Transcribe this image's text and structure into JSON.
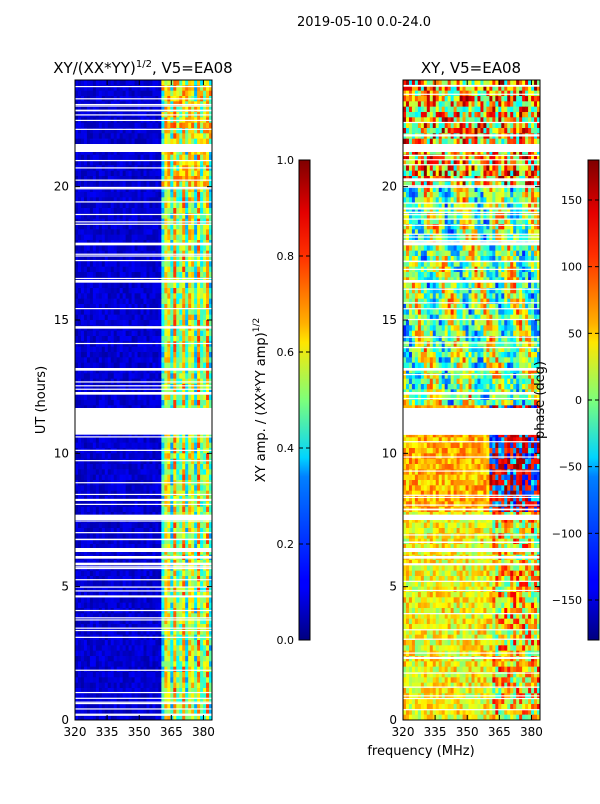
{
  "suptitle": "2019-05-10 0.0-24.0",
  "chart_data": [
    {
      "type": "heatmap",
      "title_prefix": "XY/(XX*YY)",
      "title_sup": "1/2",
      "title_suffix": ", V5=EA08",
      "ylabel": "UT (hours)",
      "xlabel": "",
      "xlim": [
        320,
        384
      ],
      "ylim": [
        0,
        24
      ],
      "xticks": [
        "320",
        "335",
        "350",
        "365",
        "380"
      ],
      "yticks": [
        "0",
        "5",
        "10",
        "15",
        "20"
      ],
      "colormap": "jet",
      "colorbar": {
        "label_prefix": "XY amp. / (XX*YY amp)",
        "label_sup": "1/2",
        "range": [
          0.0,
          1.0
        ],
        "ticks": [
          "0.0",
          "0.2",
          "0.4",
          "0.6",
          "0.8",
          "1.0"
        ]
      },
      "gaps_ut_hours": [
        [
          21.3,
          21.6
        ],
        [
          10.7,
          11.7
        ],
        [
          7.5,
          7.7
        ],
        [
          6.3,
          6.45
        ],
        [
          6.05,
          6.15
        ],
        [
          5.8,
          5.88
        ],
        [
          17.8,
          17.9
        ],
        [
          16.4,
          16.5
        ],
        [
          13.1,
          13.2
        ],
        [
          12.2,
          12.3
        ]
      ]
    },
    {
      "type": "heatmap",
      "title_prefix": "XY, V5=EA08",
      "title_sup": "",
      "title_suffix": "",
      "ylabel": "",
      "xlabel": "frequency (MHz)",
      "xlim": [
        320,
        384
      ],
      "ylim": [
        0,
        24
      ],
      "xticks": [
        "320",
        "335",
        "350",
        "365",
        "380"
      ],
      "yticks": [
        "0",
        "5",
        "10",
        "15",
        "20"
      ],
      "colormap": "jet",
      "colorbar": {
        "label_prefix": "phase (deg)",
        "label_sup": "",
        "range": [
          -180,
          180
        ],
        "ticks": [
          "−150",
          "−100",
          "−50",
          "0",
          "50",
          "100",
          "150"
        ]
      },
      "gaps_ut_hours": [
        [
          21.3,
          21.6
        ],
        [
          10.7,
          11.7
        ],
        [
          7.5,
          7.7
        ],
        [
          6.3,
          6.45
        ],
        [
          6.05,
          6.15
        ],
        [
          5.8,
          5.88
        ],
        [
          17.8,
          17.9
        ],
        [
          16.4,
          16.5
        ],
        [
          13.1,
          13.2
        ],
        [
          12.2,
          12.3
        ]
      ]
    }
  ]
}
